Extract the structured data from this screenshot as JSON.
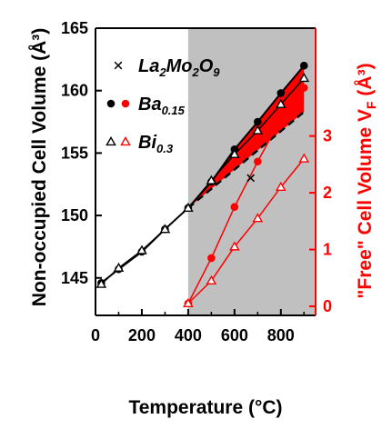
{
  "chart_data": {
    "type": "line",
    "xlabel": "Temperature (°C)",
    "ylabel_left": "Non-occupied Cell Volume (Å³)",
    "ylabel_right": "\"Free\" Cell Volume V_F (Å³)",
    "xlim": [
      0,
      950
    ],
    "ylim_left": [
      142,
      165
    ],
    "ylim_right": [
      -0.16,
      4.9
    ],
    "x_ticks": [
      0,
      200,
      400,
      600,
      800
    ],
    "y_ticks_left": [
      145,
      150,
      155,
      160,
      165
    ],
    "y_ticks_right": [
      0,
      1,
      2,
      3
    ],
    "shaded_region": {
      "x_from": 400,
      "x_to": 950,
      "color": "#c0c0c0"
    },
    "colors": {
      "black": "#000000",
      "red": "#ff0000",
      "shade": "#c0c0c0"
    },
    "legend": [
      {
        "marker": "x",
        "label_main": "La",
        "label_parts": [
          [
            "La",
            ""
          ],
          [
            "2",
            "sub"
          ],
          [
            "Mo",
            ""
          ],
          [
            "2",
            "sub"
          ],
          [
            "O",
            ""
          ],
          [
            "9",
            "sub"
          ]
        ]
      },
      {
        "marker": "circle",
        "label_parts": [
          [
            "Ba",
            ""
          ],
          [
            "0.15",
            "sub"
          ]
        ]
      },
      {
        "marker": "triangle",
        "label_parts": [
          [
            "Bi",
            ""
          ],
          [
            "0.3",
            "sub"
          ]
        ]
      }
    ],
    "series": [
      {
        "name": "La2Mo2O9",
        "axis": "left",
        "marker": "x",
        "x": [
          670
        ],
        "y": [
          153.0
        ]
      },
      {
        "name": "Ba0.15",
        "axis": "left",
        "marker": "circle",
        "x": [
          25,
          100,
          200,
          300,
          400,
          500,
          600,
          700,
          800,
          900
        ],
        "y": [
          144.6,
          145.7,
          147.1,
          148.9,
          150.6,
          152.7,
          155.3,
          157.5,
          159.8,
          162.0
        ]
      },
      {
        "name": "Bi0.3",
        "axis": "left",
        "marker": "triangle",
        "x": [
          25,
          100,
          200,
          300,
          400,
          500,
          600,
          700,
          800,
          900
        ],
        "y": [
          144.5,
          145.8,
          147.2,
          148.9,
          150.6,
          152.8,
          154.9,
          156.8,
          158.9,
          161.0
        ]
      },
      {
        "name": "Ba0.15",
        "axis": "right",
        "marker": "circle",
        "x": [
          400,
          500,
          600,
          700,
          800,
          900
        ],
        "y": [
          0.05,
          0.85,
          1.75,
          2.55,
          3.3,
          3.85
        ]
      },
      {
        "name": "Bi0.3",
        "axis": "right",
        "marker": "triangle",
        "x": [
          400,
          500,
          600,
          700,
          800,
          900
        ],
        "y": [
          0.05,
          0.45,
          1.05,
          1.55,
          2.1,
          2.6
        ]
      }
    ],
    "fit_lines": {
      "solid_black": {
        "x": [
          25,
          900
        ],
        "y": [
          144.6,
          162.0
        ]
      },
      "dashed_black": {
        "x": [
          400,
          900
        ],
        "y": [
          150.6,
          158.3
        ]
      }
    }
  }
}
